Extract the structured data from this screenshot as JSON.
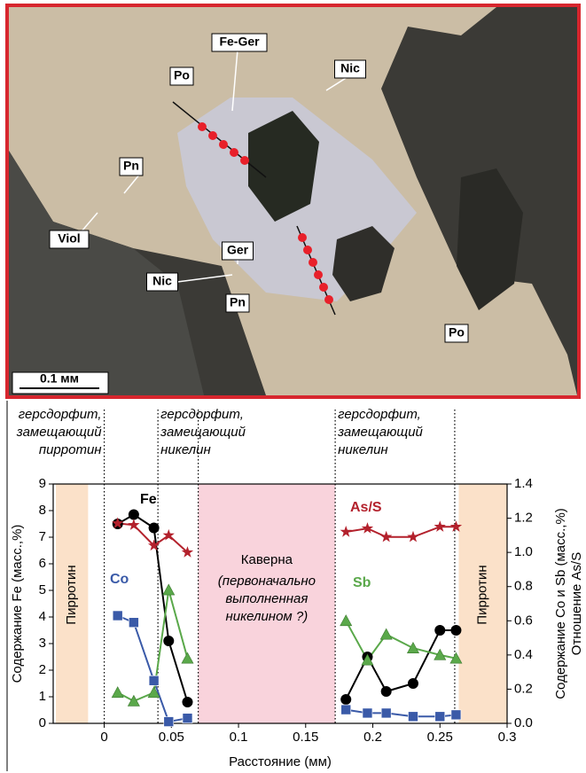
{
  "photo": {
    "labels": [
      "Po",
      "Fe-Ger",
      "Nic",
      "Pn",
      "Viol",
      "Ger",
      "Nic",
      "Pn",
      "Po"
    ],
    "scale_bar": "0.1 мм"
  },
  "chart_data": {
    "type": "line",
    "x_label": "Расстояние (мм)",
    "y_label": "Содержание Fe (масс.,%)",
    "y2_label": [
      "Содержание Co и Sb (масс.,%)",
      "Отношение As/S"
    ],
    "x": [
      0.01,
      0.022,
      0.037,
      0.048,
      0.062,
      null,
      0.18,
      0.196,
      0.21,
      0.23,
      0.25,
      0.262
    ],
    "xlim": [
      -0.038,
      0.3
    ],
    "xticks": [
      0,
      0.05,
      0.1,
      0.15,
      0.2,
      0.25,
      0.3
    ],
    "ylim": [
      0,
      9
    ],
    "yticks": [
      0,
      1,
      2,
      3,
      4,
      5,
      6,
      7,
      8,
      9
    ],
    "y2lim": [
      0,
      1.4
    ],
    "y2ticks": [
      {
        "value": 0,
        "label": "0.0"
      },
      0.2,
      0.4,
      0.6,
      0.8,
      {
        "value": 1,
        "label": "1.0"
      },
      1.2,
      1.4
    ],
    "series": [
      {
        "name": "Fe",
        "color": "#000000",
        "marker": "circle",
        "values": [
          7.5,
          7.85,
          7.35,
          3.1,
          0.8,
          null,
          0.9,
          2.5,
          1.2,
          1.5,
          3.5,
          3.5
        ]
      },
      {
        "name": "As/S",
        "color": "#b3212c",
        "marker": "star",
        "axis": "y2",
        "values": [
          1.17,
          1.16,
          1.04,
          1.1,
          1.0,
          null,
          1.12,
          1.14,
          1.09,
          1.09,
          1.15,
          1.15
        ]
      },
      {
        "name": "Co",
        "color": "#3a5aa8",
        "marker": "square",
        "axis": "y2",
        "values": [
          0.63,
          0.59,
          0.25,
          0.01,
          0.03,
          null,
          0.08,
          0.06,
          0.06,
          0.04,
          0.04,
          0.05
        ]
      },
      {
        "name": "Sb",
        "color": "#5aa84a",
        "marker": "triangle",
        "axis": "y2",
        "values": [
          0.18,
          0.13,
          0.18,
          0.78,
          0.38,
          null,
          0.6,
          0.37,
          0.52,
          0.44,
          0.4,
          0.38
        ]
      }
    ],
    "regions": [
      {
        "from": -0.036,
        "to": -0.012,
        "color": "#fbe1c9",
        "label": [
          "Пирротин"
        ],
        "vertical": true
      },
      {
        "from": 0.07,
        "to": 0.172,
        "color": "#f9d3dc",
        "label": [
          "Каверна",
          "(первоначально",
          "выполненная",
          "никелином ?)"
        ]
      },
      {
        "from": 0.264,
        "to": 0.3,
        "color": "#fbe1c9",
        "label": [
          "Пирротин"
        ],
        "vertical": true
      }
    ],
    "boundaries": [
      0,
      0.04,
      0.07,
      0.172,
      0.261
    ],
    "annotations": [
      {
        "text": [
          "герсдорфит,",
          "замещающий",
          "пирротин"
        ],
        "at": 0,
        "anchor": "end"
      },
      {
        "text": [
          "герсдорфит,",
          "замещающий",
          "никелин"
        ],
        "at": 0.04,
        "anchor": "start"
      },
      {
        "text": [
          "герсдорфит,",
          "замещающий",
          "никелин"
        ],
        "at": 0.172,
        "anchor": "start"
      }
    ]
  }
}
